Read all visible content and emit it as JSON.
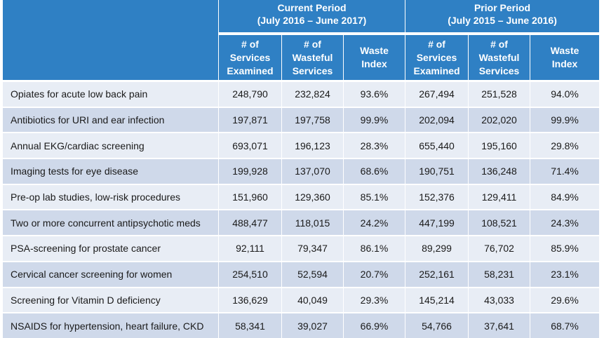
{
  "chart_data": {
    "type": "table",
    "header": {
      "current_period_title": "Current Period",
      "current_period_range": "(July 2016 – June 2017)",
      "prior_period_title": "Prior Period",
      "prior_period_range": "(July 2015 – June 2016)",
      "columns": [
        [
          "# of",
          "Services",
          "Examined"
        ],
        [
          "# of",
          "Wasteful",
          "Services"
        ],
        [
          "Waste",
          "Index"
        ],
        [
          "# of",
          "Services",
          "Examined"
        ],
        [
          "# of",
          "Wasteful",
          "Services"
        ],
        [
          "Waste",
          "Index"
        ]
      ]
    },
    "rows": [
      [
        "Opiates for acute low back pain",
        "248,790",
        "232,824",
        "93.6%",
        "267,494",
        "251,528",
        "94.0%"
      ],
      [
        "Antibiotics for URI and ear infection",
        "197,871",
        "197,758",
        "99.9%",
        "202,094",
        "202,020",
        "99.9%"
      ],
      [
        "Annual EKG/cardiac screening",
        "693,071",
        "196,123",
        "28.3%",
        "655,440",
        "195,160",
        "29.8%"
      ],
      [
        "Imaging tests for eye disease",
        "199,928",
        "137,070",
        "68.6%",
        "190,751",
        "136,248",
        "71.4%"
      ],
      [
        "Pre-op lab studies, low-risk procedures",
        "151,960",
        "129,360",
        "85.1%",
        "152,376",
        "129,411",
        "84.9%"
      ],
      [
        "Two or more concurrent antipsychotic meds",
        "488,477",
        "118,015",
        "24.2%",
        "447,199",
        "108,521",
        "24.3%"
      ],
      [
        "PSA-screening for prostate cancer",
        "92,111",
        "79,347",
        "86.1%",
        "89,299",
        "76,702",
        "85.9%"
      ],
      [
        "Cervical cancer screening for women",
        "254,510",
        "52,594",
        "20.7%",
        "252,161",
        "58,231",
        "23.1%"
      ],
      [
        "Screening for Vitamin D deficiency",
        "136,629",
        "40,049",
        "29.3%",
        "145,214",
        "43,033",
        "29.6%"
      ],
      [
        "NSAIDS for hypertension, heart failure, CKD",
        "58,341",
        "39,027",
        "66.9%",
        "54,766",
        "37,641",
        "68.7%"
      ]
    ]
  },
  "colors": {
    "header_blue": "#2f80c4",
    "row_light": "#e8edf5",
    "row_dark": "#cfd9ea",
    "header_text": "#ffffff",
    "body_text": "#1a1a1a"
  }
}
